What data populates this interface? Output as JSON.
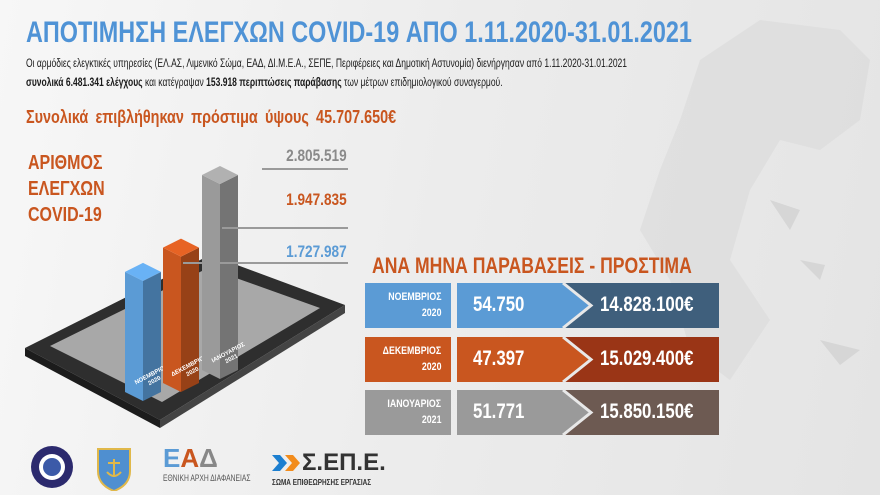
{
  "title": "ΑΠΟΤΙΜΗΣΗ ΕΛΕΓΧΩΝ COVID-19  ΑΠΟ 1.11.2020-31.01.2021",
  "intro": {
    "line1": "Οι αρμόδιες ελεγκτικές υπηρεσίες (ΕΛ.ΑΣ, Λιμενικό Σώμα, ΕΑΔ, ΔΙ.Μ.Ε.Α., ΣΕΠΕ, Περιφέρειες και Δημοτική Αστυνομία) διενήργησαν από 1.11.2020-31.01.2021",
    "line2_bold1": "συνολικά 6.481.341 ελέγχους",
    "line2_text1": " και κατέγραψαν ",
    "line2_bold2": "153.918 περιπτώσεις παράβασης",
    "line2_text2": " των μέτρων επιδημιολογικού συναγερμού."
  },
  "fines_total": "Συνολικά επιβλήθηκαν πρόστιμα ύψους  45.707.650€",
  "chart_data": {
    "type": "bar",
    "title": [
      "ΑΡΙΘΜΟΣ",
      "ΕΛΕΓΧΩΝ",
      "COVID-19"
    ],
    "categories": [
      "ΝΟΕΜΒΡΙΟΣ 2020",
      "ΔΕΚΕΜΒΡΙΟΣ 2020",
      "ΙΑΝΟΥΑΡΙΟΣ 2021"
    ],
    "values": [
      1727987,
      1947835,
      2805519
    ],
    "value_labels": [
      "1.727.987",
      "1.947.835",
      "2.805.519"
    ],
    "colors": [
      "#5b9bd5",
      "#c9561f",
      "#9a9a9a"
    ],
    "bar_labels": [
      [
        "ΝΟΕΜΒΡΙΟΣ",
        "2020"
      ],
      [
        "ΔΕΚΕΜΒΡΙΟΣ",
        "2020"
      ],
      [
        "ΙΑΝΟΥΑΡΙΟΣ",
        "2021"
      ]
    ]
  },
  "table": {
    "title": "ΑΝΑ ΜΗΝΑ ΠΑΡΑΒΑΣΕΙΣ - ΠΡΟΣΤΙΜΑ",
    "rows": [
      {
        "month": "ΝΟΕΜΒΡΙΟΣ",
        "year": "2020",
        "violations": "54.750",
        "fines": "14.828.100€",
        "color": "#5b9bd5",
        "dark": "#3f5f7c"
      },
      {
        "month": "ΔΕΚΕΜΒΡΙΟΣ",
        "year": "2020",
        "violations": "47.397",
        "fines": "15.029.400€",
        "color": "#c9561f",
        "dark": "#9a3516"
      },
      {
        "month": "ΙΑΝΟΥΑΡΙΟΣ",
        "year": "2021",
        "violations": "51.771",
        "fines": "15.850.150€",
        "color": "#9a9a9a",
        "dark": "#6d5a52"
      }
    ]
  },
  "logos": {
    "police": "ΕΛΛΗΝΙΚΗ ΑΣΤΥΝΟΜΙΑ",
    "coastguard": "ΛΙΜΕΝΙΚΟ ΣΩΜΑ",
    "ead_mark": "ΕΑΔ",
    "ead": "ΕΘΝΙΚΗ ΑΡΧΗ ΔΙΑΦΑΝΕΙΑΣ",
    "sepe_mark": "Σ.ΕΠ.Ε.",
    "sepe": "ΣΩΜΑ ΕΠΙΘΕΩΡΗΣΗΣ ΕΡΓΑΣΙΑΣ"
  }
}
